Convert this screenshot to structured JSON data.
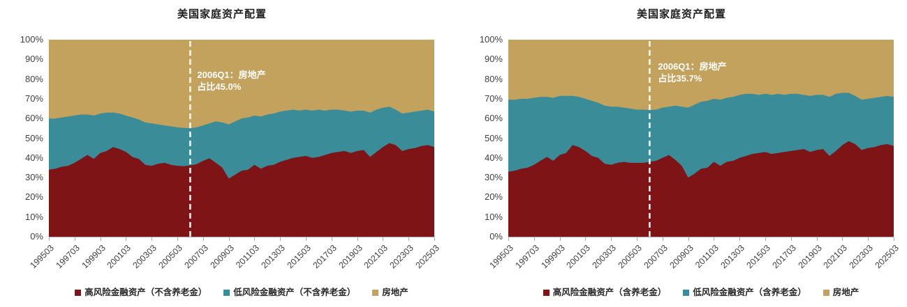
{
  "accent_colors": {
    "high_risk": "#7e1416",
    "low_risk": "#3a8c99",
    "real_estate": "#c3a25e"
  },
  "axis": {
    "tick_color": "#a6a6a6",
    "label_color": "#404040"
  },
  "marker": {
    "line_color": "#ffffff",
    "annotation_color": "#ffffff"
  },
  "chart_data": [
    {
      "type": "area",
      "stacked_percent": true,
      "title": "美国家庭资产配置",
      "x_start": 1995.0,
      "x_step": 0.5,
      "x_tick_labels": [
        "199503",
        "199703",
        "199903",
        "200103",
        "200303",
        "200503",
        "200703",
        "200903",
        "201103",
        "201303",
        "201503",
        "201703",
        "201903",
        "202103",
        "202303",
        "202503"
      ],
      "ylim": [
        0,
        100
      ],
      "y_tick_step": 10,
      "y_tick_suffix": "%",
      "grid": false,
      "legend_position": "bottom",
      "annotation": {
        "x": 2006.0,
        "line1": "2006Q1：房地产",
        "line2": "占比45.0%"
      },
      "series": [
        {
          "name": "高风险金融资产（不含养老金）",
          "color": "#7e1416",
          "values": [
            34,
            34.5,
            35.5,
            36,
            37.5,
            39.5,
            41.5,
            39.5,
            42.5,
            43.5,
            45.5,
            44.5,
            43,
            40.5,
            39.5,
            36.5,
            36,
            37,
            37.5,
            36.5,
            36,
            35.8,
            36.2,
            36.8,
            38.5,
            39.8,
            37.5,
            35,
            29.5,
            31.5,
            33.5,
            34,
            36.5,
            34.5,
            36,
            36.5,
            38,
            39,
            40,
            40.5,
            41,
            40,
            40.5,
            41.5,
            42.5,
            43,
            43.5,
            42.5,
            43.5,
            44,
            40.5,
            43,
            45.5,
            47.5,
            46.5,
            43.5,
            44.5,
            45,
            46,
            46.5,
            45.5
          ]
        },
        {
          "name": "低风险金融资产（不含养老金）",
          "color": "#3a8c99",
          "values": [
            26,
            25.5,
            25,
            25,
            24,
            22.5,
            20.5,
            22,
            20,
            19.5,
            17.5,
            18,
            18.5,
            20,
            20,
            21.5,
            21.5,
            20,
            19,
            19.5,
            19.5,
            19.4,
            18.8,
            18.7,
            18,
            17.7,
            21,
            23,
            27.5,
            27,
            26.5,
            26.5,
            25,
            26.5,
            26,
            26,
            25.5,
            25,
            24.5,
            23.5,
            23.5,
            24,
            24,
            22.5,
            22,
            21.5,
            20.5,
            21,
            20.5,
            20,
            22.5,
            21.5,
            20,
            18.5,
            18,
            19,
            18.5,
            18.5,
            18,
            18,
            18
          ]
        },
        {
          "name": "房地产",
          "color": "#c3a25e",
          "values": [
            40,
            40,
            39.5,
            39,
            38.5,
            38,
            38,
            38.5,
            37.5,
            37,
            37,
            37.5,
            38.5,
            39.5,
            40.5,
            42,
            42.5,
            43,
            43.5,
            44,
            44.5,
            44.8,
            45,
            44.5,
            43.5,
            42.5,
            41.5,
            42,
            43,
            41.5,
            40,
            39.5,
            38.5,
            39,
            38,
            37.5,
            36.5,
            36,
            35.5,
            36,
            35.5,
            36,
            35.5,
            36,
            35.5,
            35.5,
            36,
            36.5,
            36,
            36,
            37,
            35.5,
            34.5,
            34,
            35.5,
            37.5,
            37,
            36.5,
            36,
            35.5,
            36.5
          ]
        }
      ]
    },
    {
      "type": "area",
      "stacked_percent": true,
      "title": "美国家庭资产配置",
      "x_start": 1995.0,
      "x_step": 0.5,
      "x_tick_labels": [
        "199503",
        "199703",
        "199903",
        "200103",
        "200303",
        "200503",
        "200703",
        "200903",
        "201103",
        "201303",
        "201503",
        "201703",
        "201903",
        "202103",
        "202303",
        "202503"
      ],
      "ylim": [
        0,
        100
      ],
      "y_tick_step": 10,
      "y_tick_suffix": "%",
      "grid": false,
      "legend_position": "bottom",
      "annotation": {
        "x": 2006.0,
        "line1": "2006Q1：房地产",
        "line2": "占比35.7%"
      },
      "series": [
        {
          "name": "高风险金融资产（含养老金）",
          "color": "#7e1416",
          "values": [
            33,
            33.5,
            34.5,
            35,
            36.5,
            38.5,
            40.5,
            38.5,
            41.5,
            42.5,
            46.5,
            45.5,
            43.5,
            41,
            40,
            37,
            36.5,
            37.5,
            38,
            37.5,
            37.5,
            37.5,
            38,
            38.5,
            40,
            41.5,
            39,
            36,
            30,
            32,
            34.5,
            35,
            38,
            36,
            38,
            38.5,
            40,
            41,
            42,
            42.5,
            43,
            42,
            42.5,
            43,
            43.5,
            44,
            44.5,
            43,
            44,
            44.5,
            41,
            43.5,
            46.5,
            48.5,
            47,
            44,
            45,
            45.5,
            46.5,
            47,
            46
          ]
        },
        {
          "name": "低风险金融资产（含养老金）",
          "color": "#3a8c99",
          "values": [
            36.5,
            36,
            35.5,
            35,
            34,
            32.5,
            30.5,
            32,
            30,
            29,
            25,
            25.5,
            26.5,
            28,
            28,
            29.5,
            29.5,
            28.5,
            27.5,
            27.5,
            27,
            27,
            26.3,
            26,
            25.5,
            24.5,
            27.5,
            30,
            35.5,
            35,
            34,
            34,
            32,
            33.5,
            32.5,
            32.5,
            32,
            31.5,
            30.5,
            29.5,
            29.5,
            30,
            30,
            29,
            29,
            28.5,
            27.5,
            28.5,
            28,
            27.5,
            30,
            29,
            26.5,
            24.5,
            24.5,
            25.5,
            25,
            25,
            24.5,
            24.5,
            25
          ]
        },
        {
          "name": "房地产",
          "color": "#c3a25e",
          "values": [
            30.5,
            30.5,
            30,
            30,
            29.5,
            29,
            29,
            29.5,
            28.5,
            28.5,
            28.5,
            29,
            30,
            31,
            32,
            33.5,
            34,
            34,
            34.5,
            35,
            35.5,
            35.5,
            35.7,
            35.5,
            34.5,
            34,
            33.5,
            34,
            34.5,
            33,
            31.5,
            31,
            30,
            30.5,
            29.5,
            29,
            28,
            27.5,
            27.5,
            28,
            27.5,
            28,
            27.5,
            28,
            27.5,
            27.5,
            28,
            28.5,
            28,
            28,
            29,
            27.5,
            27,
            27,
            28.5,
            30.5,
            30,
            29.5,
            29,
            28.5,
            29
          ]
        }
      ]
    }
  ]
}
